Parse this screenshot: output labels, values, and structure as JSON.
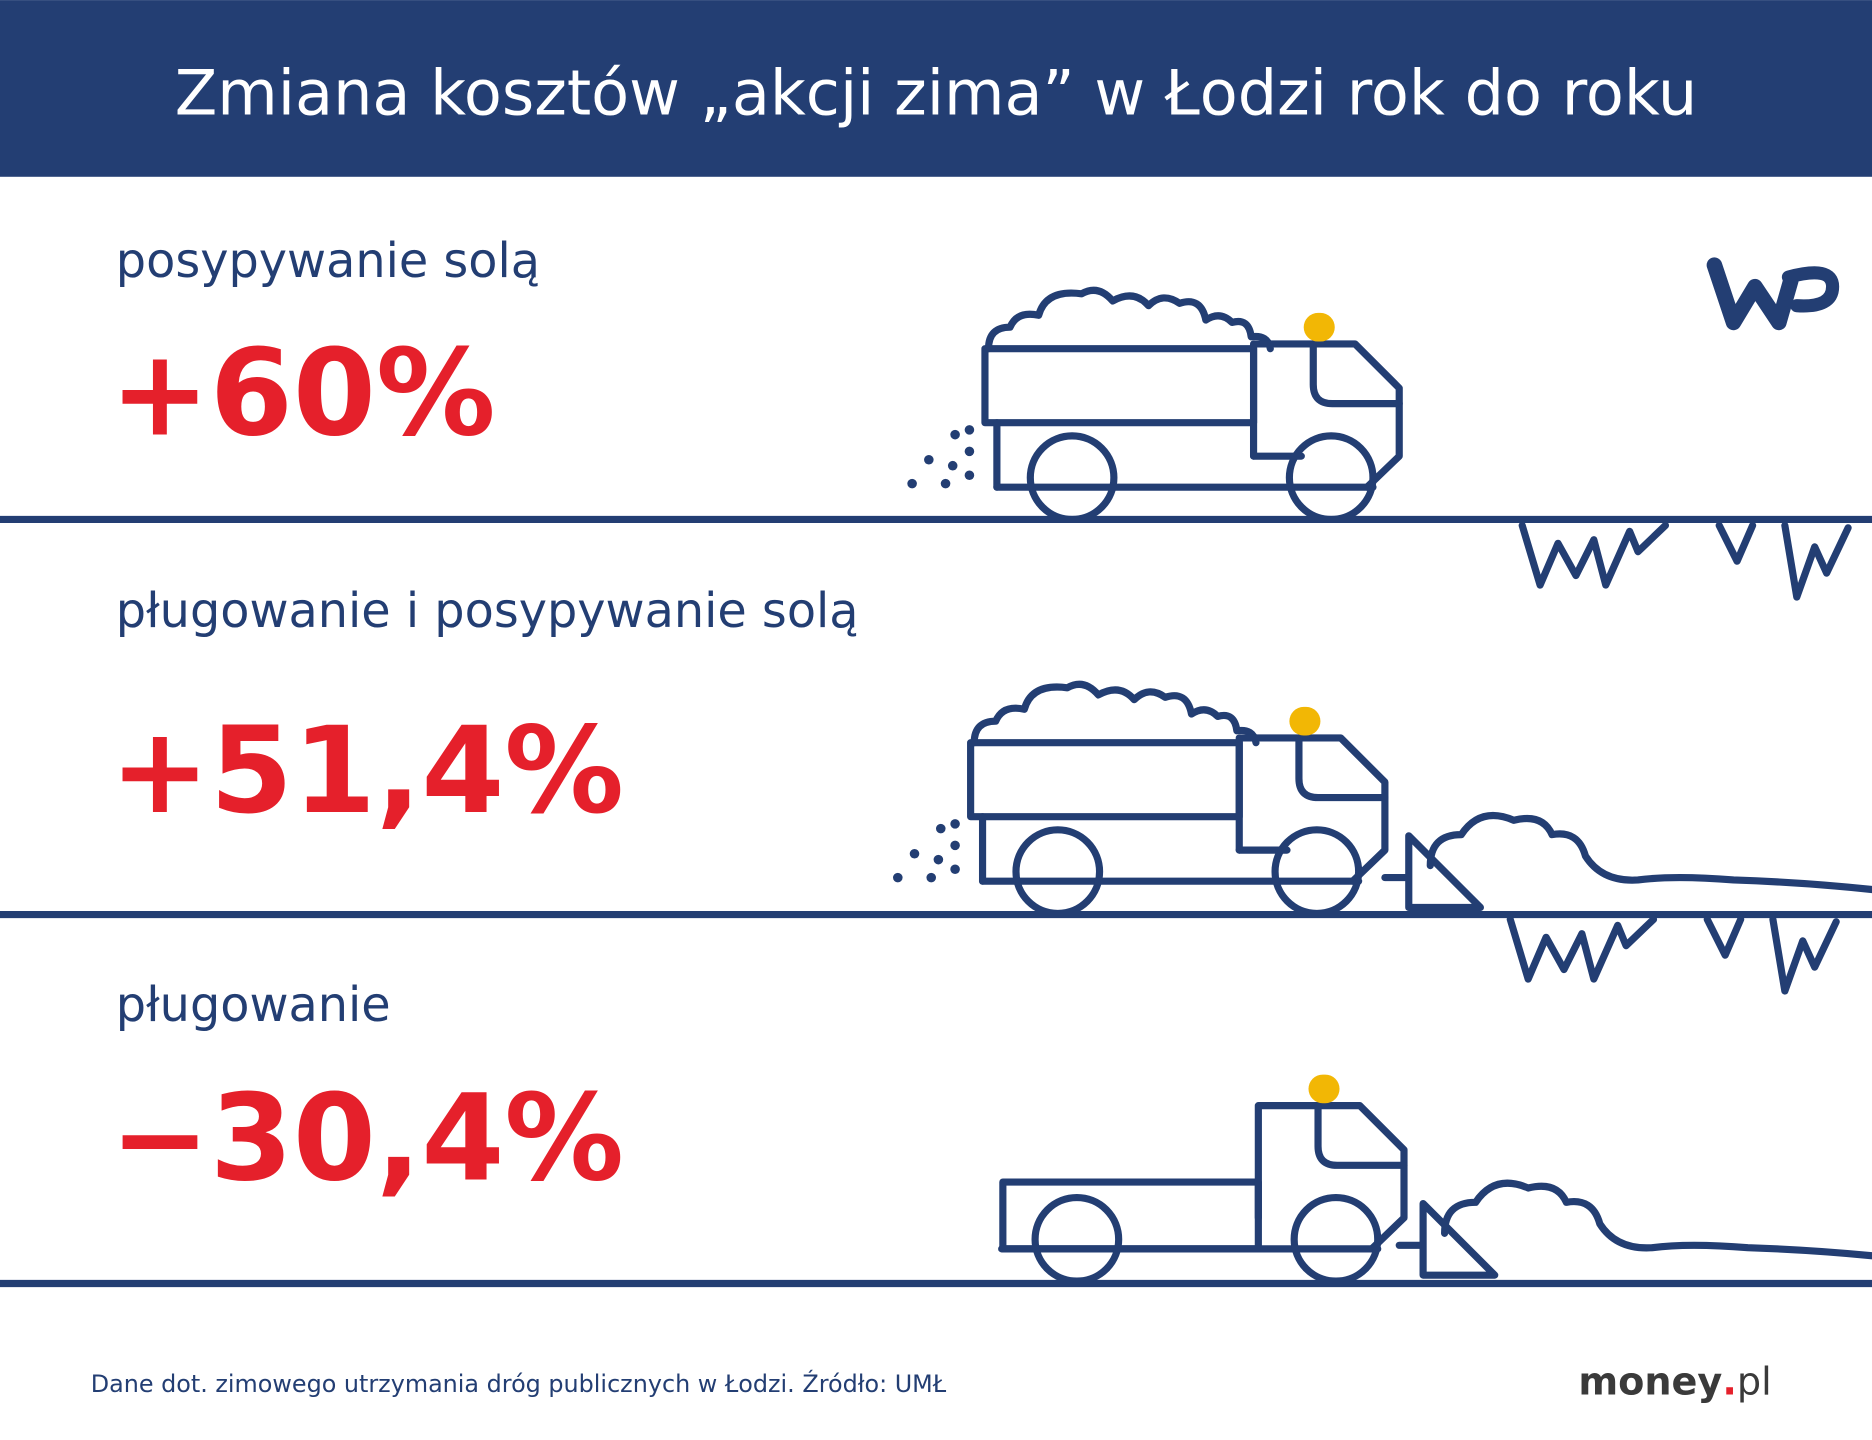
{
  "header": {
    "title": "Zmiana kosztów „akcji zima” w Łodzi rok do roku"
  },
  "items": [
    {
      "label": "posypywanie solą",
      "value": "+60%"
    },
    {
      "label": "pługowanie i posypywanie solą",
      "value": "+51,4%"
    },
    {
      "label": "pługowanie",
      "value": "−30,4%"
    }
  ],
  "footer": {
    "source": "Dane dot. zimowego utrzymania dróg publicznych w Łodzi. Źródło: UMŁ",
    "brand": {
      "name": "money",
      "dot": ".",
      "tld": "pl"
    }
  }
}
